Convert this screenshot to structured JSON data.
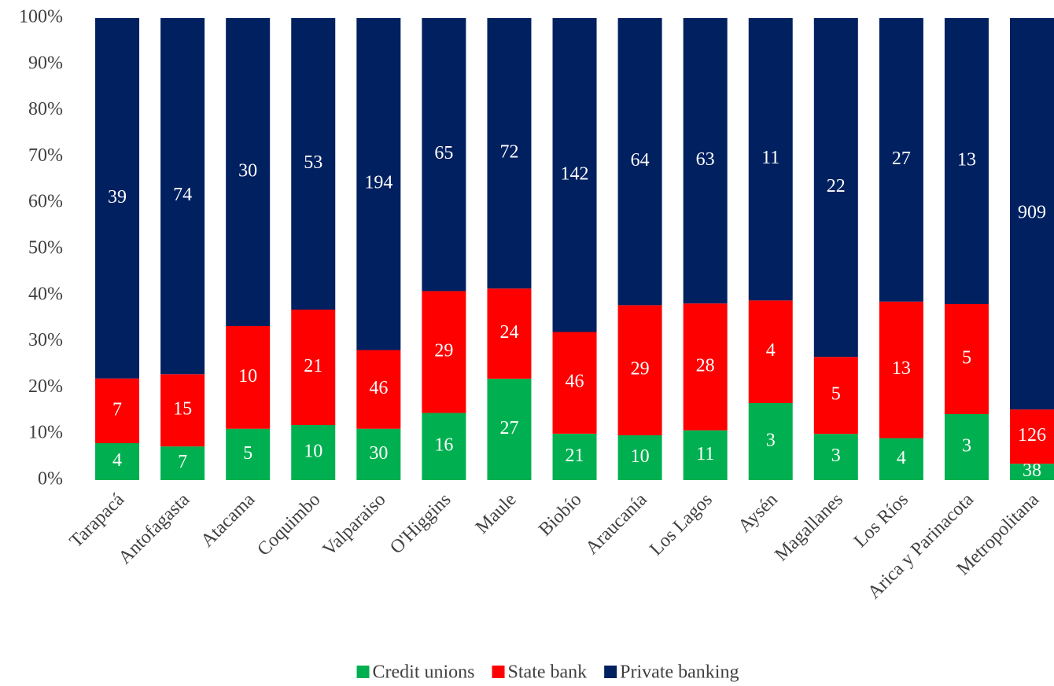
{
  "chart_data": {
    "type": "bar",
    "stacked": "percent",
    "categories": [
      "Tarapacá",
      "Antofagasta",
      "Atacama",
      "Coquimbo",
      "Valparaiso",
      "O'Higgins",
      "Maule",
      "Biobío",
      "Araucanía",
      "Los Lagos",
      "Aysén",
      "Magallanes",
      "Los Ríos",
      "Arica y Parinacota",
      "Metropolitana"
    ],
    "series": [
      {
        "name": "Credit unions",
        "color": "#00b050",
        "values": [
          4,
          7,
          5,
          10,
          30,
          16,
          27,
          21,
          10,
          11,
          3,
          3,
          4,
          3,
          38
        ]
      },
      {
        "name": "State bank",
        "color": "#ff0000",
        "values": [
          7,
          15,
          10,
          21,
          46,
          29,
          24,
          46,
          29,
          28,
          4,
          5,
          13,
          5,
          126
        ]
      },
      {
        "name": "Private banking",
        "color": "#002060",
        "values": [
          39,
          74,
          30,
          53,
          194,
          65,
          72,
          142,
          64,
          63,
          11,
          22,
          27,
          13,
          909
        ]
      }
    ],
    "ylim": [
      0,
      100
    ],
    "yticks": [
      {
        "value": 0,
        "label": "0%"
      },
      {
        "value": 10,
        "label": "10%"
      },
      {
        "value": 20,
        "label": "20%"
      },
      {
        "value": 30,
        "label": "30%"
      },
      {
        "value": 40,
        "label": "40%"
      },
      {
        "value": 50,
        "label": "50%"
      },
      {
        "value": 60,
        "label": "60%"
      },
      {
        "value": 70,
        "label": "70%"
      },
      {
        "value": 80,
        "label": "80%"
      },
      {
        "value": 90,
        "label": "90%"
      },
      {
        "value": 100,
        "label": "100%"
      }
    ],
    "grid": false,
    "legend": "bottom"
  }
}
